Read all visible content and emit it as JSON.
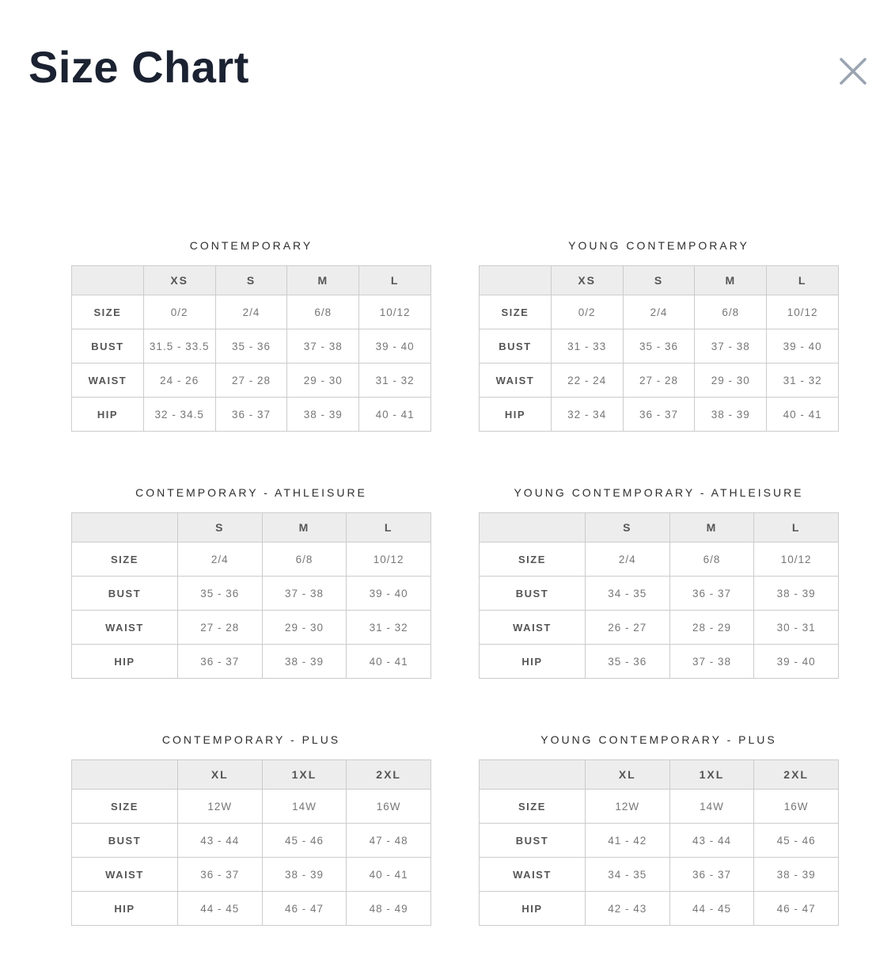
{
  "modal": {
    "title": "Size Chart"
  },
  "icons": {
    "close": "✕"
  },
  "colors": {
    "title_text": "#1b2231",
    "close_icon": "#9ba4b1",
    "section_title_text": "#2e2e2e",
    "table_border": "#cccccc",
    "header_row_bg": "#ededed",
    "header_label_text": "#555555",
    "value_text": "#777777",
    "background": "#ffffff"
  },
  "tables": [
    {
      "title": "CONTEMPORARY",
      "columns": [
        "XS",
        "S",
        "M",
        "L"
      ],
      "rows": [
        {
          "label": "SIZE",
          "values": [
            "0/2",
            "2/4",
            "6/8",
            "10/12"
          ]
        },
        {
          "label": "BUST",
          "values": [
            "31.5 - 33.5",
            "35 - 36",
            "37 - 38",
            "39 - 40"
          ]
        },
        {
          "label": "WAIST",
          "values": [
            "24 - 26",
            "27 - 28",
            "29 - 30",
            "31 - 32"
          ]
        },
        {
          "label": "HIP",
          "values": [
            "32 - 34.5",
            "36 - 37",
            "38 - 39",
            "40 - 41"
          ]
        }
      ]
    },
    {
      "title": "YOUNG CONTEMPORARY",
      "columns": [
        "XS",
        "S",
        "M",
        "L"
      ],
      "rows": [
        {
          "label": "SIZE",
          "values": [
            "0/2",
            "2/4",
            "6/8",
            "10/12"
          ]
        },
        {
          "label": "BUST",
          "values": [
            "31 - 33",
            "35 - 36",
            "37 - 38",
            "39 - 40"
          ]
        },
        {
          "label": "WAIST",
          "values": [
            "22 - 24",
            "27 - 28",
            "29 - 30",
            "31 - 32"
          ]
        },
        {
          "label": "HIP",
          "values": [
            "32 - 34",
            "36 - 37",
            "38 - 39",
            "40 - 41"
          ]
        }
      ]
    },
    {
      "title": "CONTEMPORARY - ATHLEISURE",
      "columns": [
        "S",
        "M",
        "L"
      ],
      "rows": [
        {
          "label": "SIZE",
          "values": [
            "2/4",
            "6/8",
            "10/12"
          ]
        },
        {
          "label": "BUST",
          "values": [
            "35 - 36",
            "37 - 38",
            "39 - 40"
          ]
        },
        {
          "label": "WAIST",
          "values": [
            "27 - 28",
            "29 - 30",
            "31 - 32"
          ]
        },
        {
          "label": "HIP",
          "values": [
            "36 - 37",
            "38 - 39",
            "40 - 41"
          ]
        }
      ]
    },
    {
      "title": "YOUNG CONTEMPORARY - ATHLEISURE",
      "columns": [
        "S",
        "M",
        "L"
      ],
      "rows": [
        {
          "label": "SIZE",
          "values": [
            "2/4",
            "6/8",
            "10/12"
          ]
        },
        {
          "label": "BUST",
          "values": [
            "34 - 35",
            "36 - 37",
            "38 - 39"
          ]
        },
        {
          "label": "WAIST",
          "values": [
            "26 - 27",
            "28 - 29",
            "30 - 31"
          ]
        },
        {
          "label": "HIP",
          "values": [
            "35 - 36",
            "37 - 38",
            "39 - 40"
          ]
        }
      ]
    },
    {
      "title": "CONTEMPORARY - PLUS",
      "columns": [
        "XL",
        "1XL",
        "2XL"
      ],
      "rows": [
        {
          "label": "SIZE",
          "values": [
            "12W",
            "14W",
            "16W"
          ]
        },
        {
          "label": "BUST",
          "values": [
            "43 - 44",
            "45 - 46",
            "47 - 48"
          ]
        },
        {
          "label": "WAIST",
          "values": [
            "36 - 37",
            "38 - 39",
            "40 - 41"
          ]
        },
        {
          "label": "HIP",
          "values": [
            "44 - 45",
            "46 - 47",
            "48 - 49"
          ]
        }
      ]
    },
    {
      "title": "YOUNG CONTEMPORARY - PLUS",
      "columns": [
        "XL",
        "1XL",
        "2XL"
      ],
      "rows": [
        {
          "label": "SIZE",
          "values": [
            "12W",
            "14W",
            "16W"
          ]
        },
        {
          "label": "BUST",
          "values": [
            "41 - 42",
            "43 - 44",
            "45 - 46"
          ]
        },
        {
          "label": "WAIST",
          "values": [
            "34 - 35",
            "36 - 37",
            "38 - 39"
          ]
        },
        {
          "label": "HIP",
          "values": [
            "42 - 43",
            "44 - 45",
            "46 - 47"
          ]
        }
      ]
    }
  ]
}
